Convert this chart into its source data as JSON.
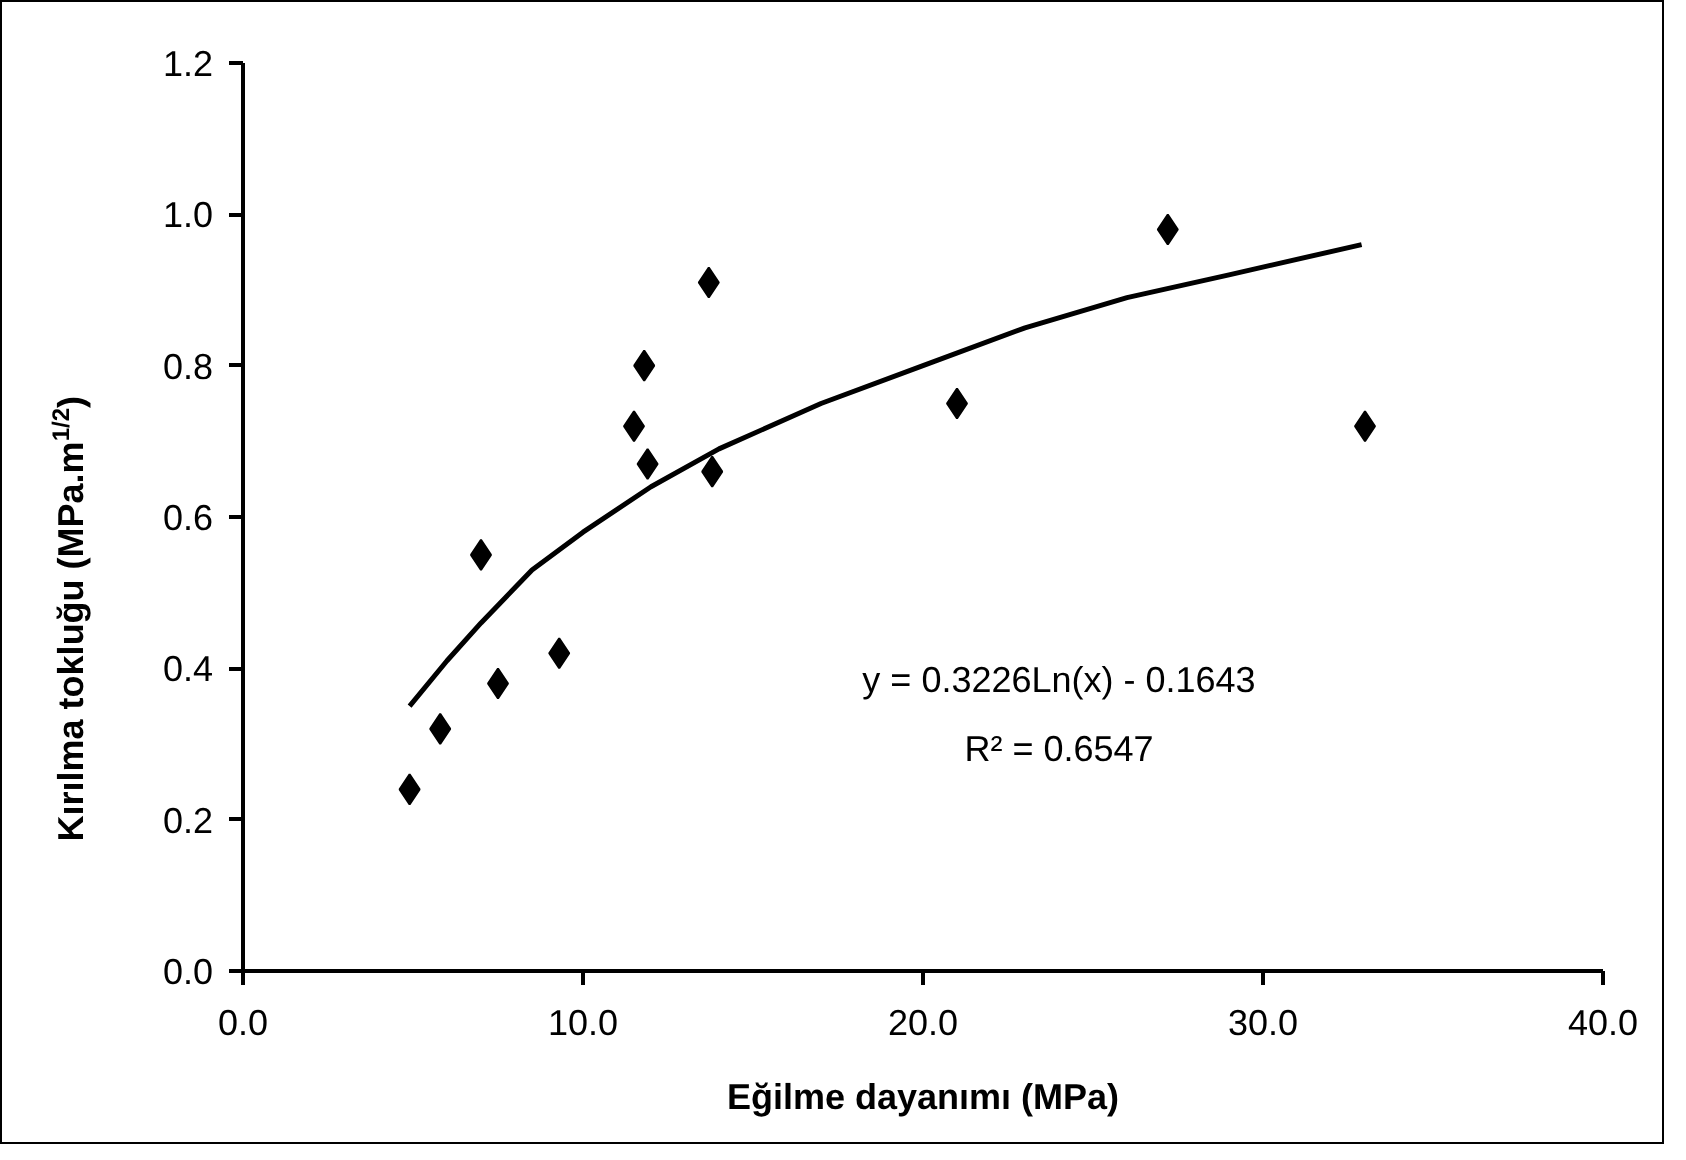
{
  "chart_data": {
    "type": "scatter",
    "xlabel": "Eğilme dayanımı (MPa)",
    "ylabel": "Kırılma tokluğu (MPa.m$^{1/2}$)",
    "xlim": [
      0,
      40
    ],
    "ylim": [
      0,
      1.2
    ],
    "xticks": [
      {
        "value": 0,
        "label": "0.0"
      },
      {
        "value": 10,
        "label": "10.0"
      },
      {
        "value": 20,
        "label": "20.0"
      },
      {
        "value": 30,
        "label": "30.0"
      },
      {
        "value": 40,
        "label": "40.0"
      }
    ],
    "yticks": [
      {
        "value": 0,
        "label": "0.0"
      },
      {
        "value": 0.2,
        "label": "0.2"
      },
      {
        "value": 0.4,
        "label": "0.4"
      },
      {
        "value": 0.6,
        "label": "0.6"
      },
      {
        "value": 0.8,
        "label": "0.8"
      },
      {
        "value": 1.0,
        "label": "1.0"
      },
      {
        "value": 1.2,
        "label": "1.2"
      }
    ],
    "grid": false,
    "marker": "diamond",
    "series": [
      {
        "color": "#000000",
        "x": [
          4.9,
          5.8,
          7.0,
          7.5,
          9.3,
          11.5,
          11.8,
          11.9,
          13.7,
          13.8,
          21.0,
          27.2,
          33.0
        ],
        "values": [
          0.24,
          0.32,
          0.55,
          0.38,
          0.42,
          0.72,
          0.8,
          0.67,
          0.91,
          0.66,
          0.75,
          0.98,
          0.72
        ]
      },
      {
        "type": "line",
        "color": "#000000",
        "marker": "none",
        "x": [
          4.9,
          6,
          7,
          8.5,
          10,
          12,
          14,
          17,
          20,
          23,
          26,
          29,
          32.9
        ],
        "values": [
          0.35,
          0.41,
          0.46,
          0.53,
          0.58,
          0.64,
          0.69,
          0.75,
          0.8,
          0.85,
          0.89,
          0.92,
          0.96
        ]
      }
    ],
    "annotations": [
      "y = 0.3226Ln(x) - 0.1643",
      "R² = 0.6547"
    ]
  }
}
